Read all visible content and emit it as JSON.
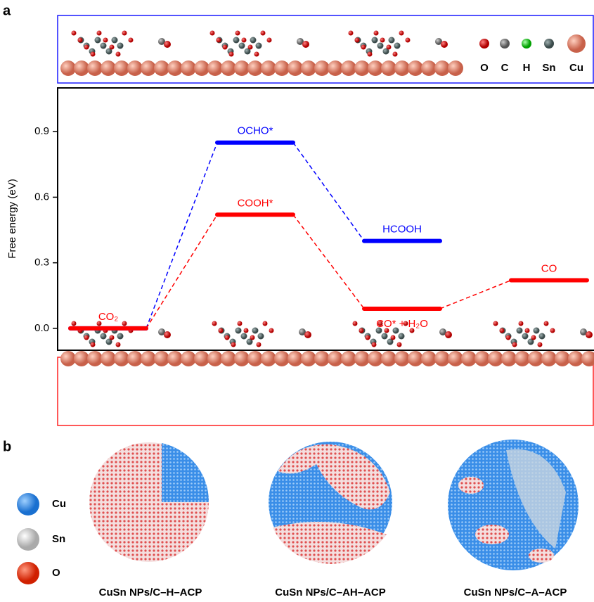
{
  "panel_labels": [
    "a",
    "b"
  ],
  "atom_legend_top": [
    "O",
    "C",
    "H",
    "Sn",
    "Cu"
  ],
  "chart_data": {
    "type": "energy-diagram",
    "ylabel": "Free energy (eV)",
    "ylim": [
      -0.1,
      1.1
    ],
    "yticks": [
      {
        "value": 0,
        "label": "0.0"
      },
      {
        "value": 0.3,
        "label": "0.3"
      },
      {
        "value": 0.6,
        "label": "0.6"
      },
      {
        "value": 0.9,
        "label": "0.9"
      }
    ],
    "series": [
      {
        "color": "#0000ff",
        "positions": [
          0,
          1,
          2
        ],
        "values": [
          0,
          0.85,
          0.4
        ],
        "labels": [
          null,
          "OCHO*",
          "HCOOH"
        ]
      },
      {
        "color": "#ff0000",
        "positions": [
          0,
          1,
          2,
          3
        ],
        "values": [
          0,
          0.52,
          0.09,
          0.22
        ],
        "labels": [
          "CO₂",
          "COOH*",
          "CO* + H₂O",
          "CO"
        ]
      }
    ]
  },
  "atom_legend_b": [
    "Cu",
    "Sn",
    "O"
  ],
  "captions": [
    "CuSn NPs/C–H–ACP",
    "CuSn NPs/C–AH–ACP",
    "CuSn NPs/C–A–ACP"
  ]
}
